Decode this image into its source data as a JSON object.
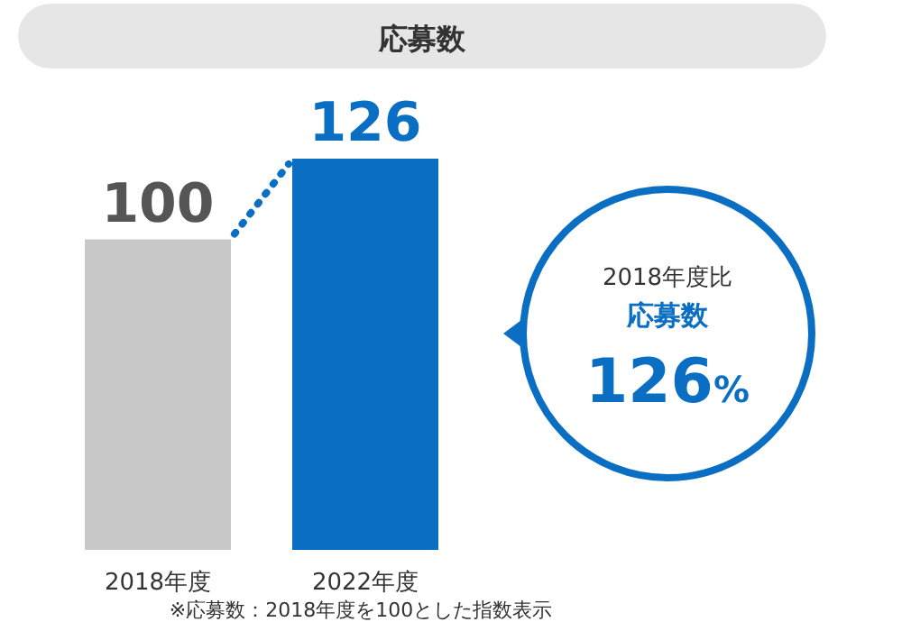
{
  "chart_data": {
    "type": "bar",
    "title": "応募数",
    "categories": [
      "2018年度",
      "2022年度"
    ],
    "values": [
      100,
      126
    ],
    "colors": [
      "#c8c8c8",
      "#0a6fc3"
    ],
    "data_labels": true,
    "annotations": [
      "2018年度比",
      "応募数",
      "126%",
      "※応募数：2018年度を100とした指数表示"
    ]
  }
}
